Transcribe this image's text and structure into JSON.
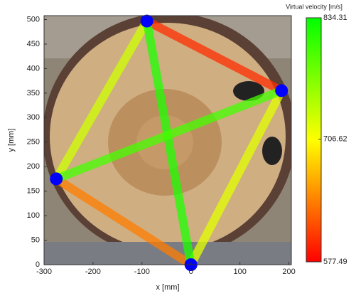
{
  "chart_data": {
    "type": "network",
    "xlabel": "x [mm]",
    "ylabel": "y [mm]",
    "xlim": [
      -300,
      205
    ],
    "ylim": [
      0,
      508
    ],
    "xticks": [
      -300,
      -200,
      -100,
      0,
      100,
      200
    ],
    "yticks": [
      0,
      50,
      100,
      150,
      200,
      250,
      300,
      350,
      400,
      450,
      500
    ],
    "sensors": {
      "x": [
        -90,
        185,
        -275,
        0
      ],
      "y": [
        497,
        355,
        175,
        0
      ],
      "color": "#0000ff"
    },
    "segments": [
      {
        "from": 0,
        "to": 1,
        "velocity": 600
      },
      {
        "from": 1,
        "to": 3,
        "velocity": 720
      },
      {
        "from": 3,
        "to": 2,
        "velocity": 640
      },
      {
        "from": 2,
        "to": 0,
        "velocity": 730
      },
      {
        "from": 0,
        "to": 3,
        "velocity": 820
      },
      {
        "from": 2,
        "to": 1,
        "velocity": 800
      }
    ],
    "colorbar": {
      "label": "Virtual velocity [m/s]",
      "lim": [
        577.49,
        834.31
      ],
      "ticks": [
        577.49,
        706.62,
        834.31
      ],
      "colors": [
        "#ff0000",
        "#ffff00",
        "#00ff00"
      ]
    }
  }
}
